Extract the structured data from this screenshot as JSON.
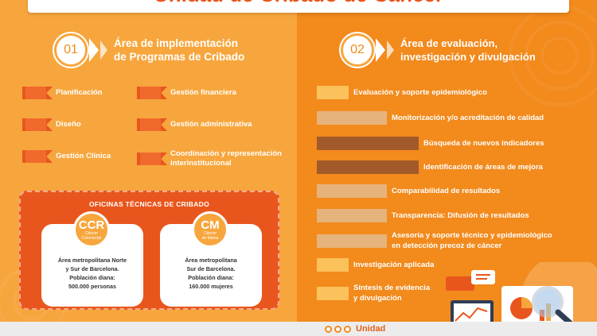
{
  "title": "Unidad de Cribado de Cáncer",
  "left": {
    "number": "01",
    "heading_line1": "Área de implementación",
    "heading_line2": "de Programas de Cribado",
    "items_col1": [
      "Planificación",
      "Diseño",
      "Gestión Clínica"
    ],
    "items_col2": [
      "Gestión financiera",
      "Gestión administrativa"
    ],
    "item_coord_line1": "Coordinación y representación",
    "item_coord_line2": "interinstitucional",
    "oficinas": {
      "heading": "OFICINAS TÉCNICAS DE CRIBADO",
      "ccr": {
        "abbr": "CCR",
        "sub1": "Cáncer",
        "sub2": "Colorrectal",
        "line1": "Área metropolitana Norte",
        "line2": "y Sur de Barcelona.",
        "line3": "Población diana:",
        "line4": "500.000 personas"
      },
      "cm": {
        "abbr": "CM",
        "sub1": "Cáncer",
        "sub2": "de Mama",
        "line1": "Área metropolitana",
        "line2": "Sur de Barcelona.",
        "line3": "Población diana:",
        "line4": "160.000 mujeres"
      }
    }
  },
  "right": {
    "number": "02",
    "heading_line1": "Área de evaluación,",
    "heading_line2": "investigación y divulgación",
    "items": [
      "Evaluación y soporte epidemiológico",
      "Monitorización y/o acreditación de calidad",
      "Búsqueda de nuevos indicadores",
      "Identificación de áreas de mejora",
      "Comparabilidad de resultados",
      "Transparencia: Difusión de resultados"
    ],
    "asesoria_line1": "Asesoría y soporte técnico y epidemiológico",
    "asesoria_line2": "en detección precoz de cáncer",
    "investigacion": "Investigación aplicada",
    "sintesis_line1": "Síntesis de evidencia",
    "sintesis_line2": "y divulgación"
  },
  "footer": {
    "logo_text": "Unidad"
  },
  "colors": {
    "left_bg": "#f7a63d",
    "right_bg": "#f28a1c",
    "accent": "#e8561d"
  }
}
